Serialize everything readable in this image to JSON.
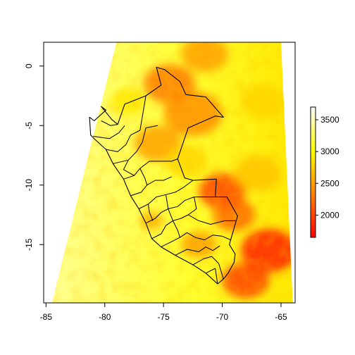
{
  "chart_data": {
    "type": "heatmap",
    "title": "",
    "xlabel": "",
    "ylabel": "",
    "xlim": [
      -85.2,
      -63.8
    ],
    "ylim": [
      -19.9,
      2.0
    ],
    "x_ticks": [
      {
        "value": -85,
        "label": "-85"
      },
      {
        "value": -80,
        "label": "-80"
      },
      {
        "value": -75,
        "label": "-75"
      },
      {
        "value": -70,
        "label": "-70"
      },
      {
        "value": -65,
        "label": "-65"
      }
    ],
    "y_ticks": [
      {
        "value": 0,
        "label": "0"
      },
      {
        "value": -5,
        "label": "-5"
      },
      {
        "value": -10,
        "label": "-10"
      },
      {
        "value": -15,
        "label": "-15"
      }
    ],
    "legend": {
      "placement": "right",
      "range": [
        1650,
        3700
      ],
      "ticks": [
        {
          "value": 3500,
          "label": "3500"
        },
        {
          "value": 3000,
          "label": "3000"
        },
        {
          "value": 2500,
          "label": "2500"
        },
        {
          "value": 2000,
          "label": "2000"
        }
      ],
      "colors": [
        "#ff0000",
        "#ff4000",
        "#ff8000",
        "#ffbf00",
        "#ffff00",
        "#ffff80",
        "#ffffff"
      ]
    },
    "raster_extent": {
      "top_lon": [
        -79.0,
        -65.0
      ],
      "bottom_lon": [
        -84.5,
        -64.0
      ],
      "lat": [
        -19.9,
        2.0
      ]
    },
    "hotspots": [
      {
        "lon": -74.5,
        "lat": -1.5,
        "value": 2300,
        "r": 2.2
      },
      {
        "lon": -72.5,
        "lat": -4.0,
        "value": 2400,
        "r": 2.5
      },
      {
        "lon": -71.5,
        "lat": 1.0,
        "value": 2500,
        "r": 2.0
      },
      {
        "lon": -75.5,
        "lat": -6.5,
        "value": 2500,
        "r": 2.0
      },
      {
        "lon": -70.0,
        "lat": -10.5,
        "value": 2000,
        "r": 2.0
      },
      {
        "lon": -69.0,
        "lat": -12.5,
        "value": 2200,
        "r": 1.8
      },
      {
        "lon": -66.0,
        "lat": -15.5,
        "value": 1800,
        "r": 2.4
      },
      {
        "lon": -68.0,
        "lat": -18.0,
        "value": 2000,
        "r": 2.0
      },
      {
        "lon": -67.0,
        "lat": -9.0,
        "value": 2700,
        "r": 2.0
      },
      {
        "lon": -73.0,
        "lat": -8.0,
        "value": 2800,
        "r": 1.8
      },
      {
        "lon": -76.0,
        "lat": -13.0,
        "value": 2600,
        "r": 1.0
      },
      {
        "lon": -72.0,
        "lat": -15.0,
        "value": 2500,
        "r": 1.5
      },
      {
        "lon": -66.5,
        "lat": -3.0,
        "value": 2800,
        "r": 2.0
      },
      {
        "lon": -78.0,
        "lat": -3.0,
        "value": 2900,
        "r": 1.5
      }
    ],
    "background_value_west": 3400,
    "background_value_east": 2900,
    "country_outline": [
      [
        -80.3,
        -3.4
      ],
      [
        -79.9,
        -3.7
      ],
      [
        -80.9,
        -4.6
      ],
      [
        -81.3,
        -4.3
      ],
      [
        -81.2,
        -5.8
      ],
      [
        -80.8,
        -6.2
      ],
      [
        -79.9,
        -7.0
      ],
      [
        -79.3,
        -8.2
      ],
      [
        -78.4,
        -9.5
      ],
      [
        -77.8,
        -10.9
      ],
      [
        -77.1,
        -12.0
      ],
      [
        -76.5,
        -13.2
      ],
      [
        -76.0,
        -14.5
      ],
      [
        -75.2,
        -15.2
      ],
      [
        -74.0,
        -15.9
      ],
      [
        -72.5,
        -16.7
      ],
      [
        -71.4,
        -17.4
      ],
      [
        -70.4,
        -18.3
      ],
      [
        -69.9,
        -17.9
      ],
      [
        -69.5,
        -17.4
      ],
      [
        -69.0,
        -16.5
      ],
      [
        -68.9,
        -15.8
      ],
      [
        -69.4,
        -15.0
      ],
      [
        -68.7,
        -12.6
      ],
      [
        -69.6,
        -11.0
      ],
      [
        -70.6,
        -11.0
      ],
      [
        -70.5,
        -9.5
      ],
      [
        -72.5,
        -9.6
      ],
      [
        -73.2,
        -9.4
      ],
      [
        -73.8,
        -7.8
      ],
      [
        -72.9,
        -5.2
      ],
      [
        -70.6,
        -4.2
      ],
      [
        -69.9,
        -4.3
      ],
      [
        -71.4,
        -2.6
      ],
      [
        -73.1,
        -2.4
      ],
      [
        -73.6,
        -1.3
      ],
      [
        -74.9,
        -0.3
      ],
      [
        -75.6,
        -0.1
      ],
      [
        -75.2,
        -1.6
      ],
      [
        -76.5,
        -2.5
      ],
      [
        -78.3,
        -3.2
      ],
      [
        -78.9,
        -4.9
      ],
      [
        -79.4,
        -4.5
      ],
      [
        -80.3,
        -3.4
      ]
    ],
    "region_lines": [
      [
        [
          -80.3,
          -4.6
        ],
        [
          -79.5,
          -5.0
        ],
        [
          -78.9,
          -4.9
        ]
      ],
      [
        [
          -81.0,
          -5.9
        ],
        [
          -79.6,
          -6.1
        ],
        [
          -78.8,
          -5.6
        ],
        [
          -78.3,
          -5.0
        ]
      ],
      [
        [
          -79.9,
          -7.0
        ],
        [
          -78.9,
          -7.2
        ],
        [
          -78.2,
          -6.6
        ],
        [
          -77.8,
          -5.8
        ],
        [
          -77.0,
          -5.4
        ],
        [
          -76.5,
          -2.5
        ]
      ],
      [
        [
          -79.3,
          -8.2
        ],
        [
          -78.0,
          -7.9
        ],
        [
          -77.3,
          -7.2
        ],
        [
          -76.8,
          -6.4
        ],
        [
          -76.5,
          -5.2
        ],
        [
          -75.5,
          -5.0
        ]
      ],
      [
        [
          -78.4,
          -9.5
        ],
        [
          -77.5,
          -9.2
        ],
        [
          -77.0,
          -8.6
        ],
        [
          -76.2,
          -8.0
        ],
        [
          -75.2,
          -8.0
        ],
        [
          -74.3,
          -8.0
        ],
        [
          -73.8,
          -7.8
        ]
      ],
      [
        [
          -77.8,
          -10.9
        ],
        [
          -76.9,
          -10.6
        ],
        [
          -76.4,
          -10.0
        ],
        [
          -75.7,
          -9.6
        ],
        [
          -75.0,
          -9.6
        ],
        [
          -74.3,
          -9.3
        ]
      ],
      [
        [
          -77.1,
          -12.0
        ],
        [
          -76.3,
          -11.6
        ],
        [
          -75.6,
          -11.0
        ],
        [
          -74.8,
          -10.8
        ],
        [
          -74.0,
          -10.6
        ],
        [
          -73.3,
          -10.2
        ],
        [
          -72.5,
          -9.6
        ]
      ],
      [
        [
          -76.5,
          -13.2
        ],
        [
          -75.7,
          -12.8
        ],
        [
          -75.2,
          -12.3
        ],
        [
          -74.6,
          -12.0
        ],
        [
          -73.8,
          -11.8
        ],
        [
          -73.2,
          -11.3
        ],
        [
          -72.4,
          -11.0
        ],
        [
          -70.6,
          -11.0
        ]
      ],
      [
        [
          -76.0,
          -14.5
        ],
        [
          -75.2,
          -14.1
        ],
        [
          -74.8,
          -13.4
        ],
        [
          -74.2,
          -13.0
        ],
        [
          -73.5,
          -12.8
        ],
        [
          -72.9,
          -12.5
        ],
        [
          -72.0,
          -13.0
        ],
        [
          -71.0,
          -13.3
        ],
        [
          -69.8,
          -13.0
        ],
        [
          -68.8,
          -13.0
        ]
      ],
      [
        [
          -75.2,
          -15.2
        ],
        [
          -74.4,
          -14.8
        ],
        [
          -73.6,
          -14.4
        ],
        [
          -73.0,
          -14.0
        ],
        [
          -72.3,
          -14.4
        ],
        [
          -71.5,
          -14.6
        ],
        [
          -70.8,
          -14.2
        ],
        [
          -70.0,
          -14.3
        ],
        [
          -69.3,
          -14.6
        ]
      ],
      [
        [
          -74.0,
          -15.9
        ],
        [
          -73.0,
          -15.4
        ],
        [
          -72.0,
          -15.6
        ],
        [
          -71.4,
          -15.2
        ],
        [
          -70.8,
          -15.5
        ],
        [
          -70.2,
          -15.1
        ]
      ],
      [
        [
          -72.5,
          -16.7
        ],
        [
          -71.6,
          -16.2
        ],
        [
          -70.9,
          -16.0
        ],
        [
          -70.3,
          -16.6
        ],
        [
          -69.9,
          -17.9
        ]
      ],
      [
        [
          -71.4,
          -17.4
        ],
        [
          -70.6,
          -17.0
        ],
        [
          -70.4,
          -18.3
        ]
      ],
      [
        [
          -76.3,
          -11.6
        ],
        [
          -76.2,
          -12.3
        ],
        [
          -75.9,
          -13.0
        ]
      ],
      [
        [
          -74.8,
          -10.8
        ],
        [
          -74.6,
          -12.0
        ],
        [
          -74.2,
          -13.0
        ],
        [
          -73.8,
          -13.8
        ],
        [
          -73.6,
          -14.4
        ]
      ],
      [
        [
          -72.4,
          -11.0
        ],
        [
          -72.2,
          -12.0
        ],
        [
          -72.9,
          -12.5
        ]
      ],
      [
        [
          -77.0,
          -8.6
        ],
        [
          -76.6,
          -9.4
        ],
        [
          -76.4,
          -10.0
        ]
      ],
      [
        [
          -78.0,
          -7.9
        ],
        [
          -78.4,
          -8.7
        ],
        [
          -77.5,
          -9.2
        ]
      ]
    ]
  }
}
